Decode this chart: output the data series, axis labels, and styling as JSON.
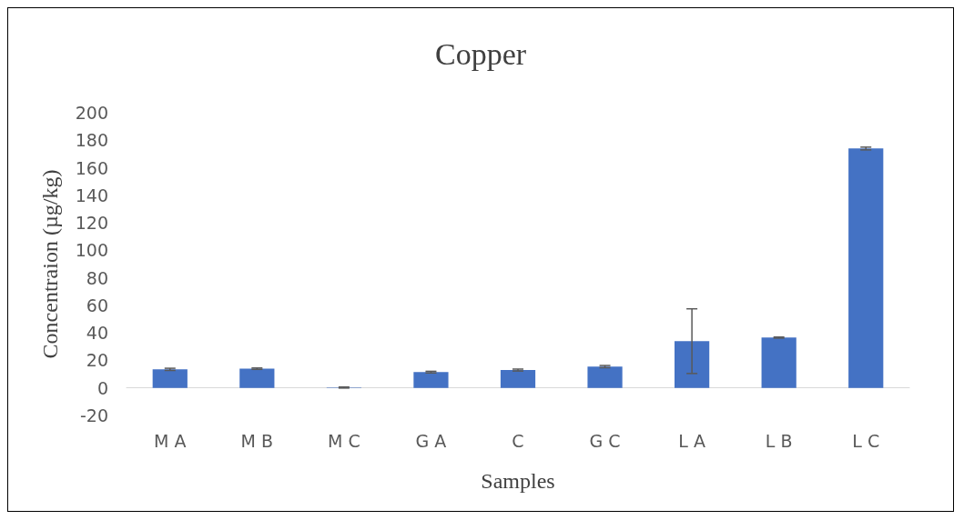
{
  "chart_data": {
    "type": "bar",
    "title": "Copper",
    "xlabel": "Samples",
    "ylabel": "Concentraion (µg/kg)",
    "categories": [
      "M A",
      "M B",
      "M C",
      "G A",
      "C",
      "G C",
      "L A",
      "L B",
      "L C"
    ],
    "values": [
      13.5,
      14,
      0.3,
      11.5,
      13,
      15.5,
      34,
      36.6,
      174
    ],
    "errors": [
      0.8,
      0.5,
      0.4,
      0.6,
      0.7,
      0.8,
      23.5,
      0.4,
      1
    ],
    "color": "#4472c4",
    "ylim": [
      -20,
      200
    ],
    "yticks": [
      -20,
      0,
      20,
      40,
      60,
      80,
      100,
      120,
      140,
      160,
      180,
      200
    ],
    "grid": false
  }
}
